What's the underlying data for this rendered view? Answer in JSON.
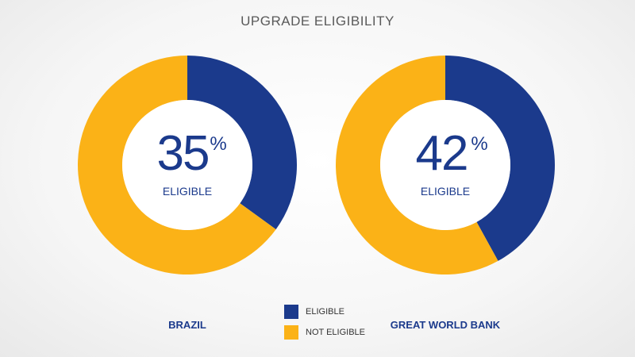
{
  "title": "UPGRADE ELIGIBILITY",
  "colors": {
    "eligible": "#1b3a8c",
    "not_eligible": "#fbb217"
  },
  "legend": [
    {
      "label": "ELIGIBLE",
      "color": "#1b3a8c"
    },
    {
      "label": "NOT ELIGIBLE",
      "color": "#fbb217"
    }
  ],
  "chart_data": [
    {
      "type": "pie",
      "title": "BRAZIL",
      "center_value": "35",
      "center_unit": "%",
      "center_label": "ELIGIBLE",
      "categories": [
        "ELIGIBLE",
        "NOT ELIGIBLE"
      ],
      "values": [
        35,
        65
      ],
      "legend_position": "bottom-center"
    },
    {
      "type": "pie",
      "title": "GREAT WORLD BANK",
      "center_value": "42",
      "center_unit": "%",
      "center_label": "ELIGIBLE",
      "categories": [
        "ELIGIBLE",
        "NOT ELIGIBLE"
      ],
      "values": [
        42,
        58
      ],
      "legend_position": "bottom-center"
    }
  ]
}
